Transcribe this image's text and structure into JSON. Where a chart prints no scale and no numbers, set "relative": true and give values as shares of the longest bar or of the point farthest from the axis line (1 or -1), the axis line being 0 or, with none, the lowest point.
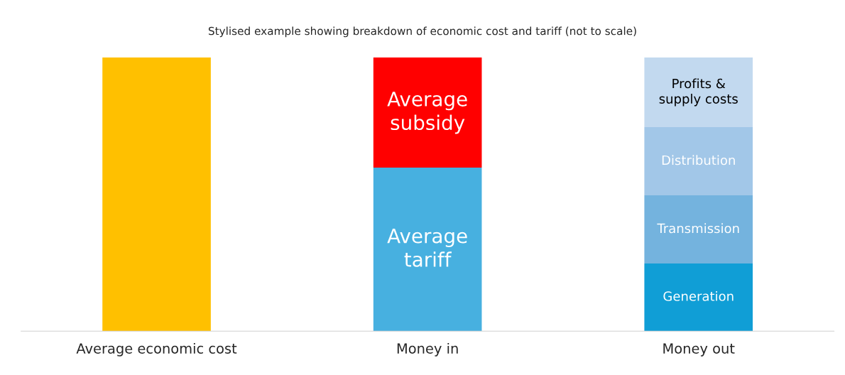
{
  "chart_data": {
    "type": "bar",
    "title": "Stylised example showing breakdown of economic cost and tariff (not to scale)",
    "categories": [
      "Average economic cost",
      "Money in",
      "Money out"
    ],
    "stacked": true,
    "relative": true,
    "grid": false,
    "legend": false,
    "series": [
      {
        "color": "#ffc000",
        "values": [
          1,
          null,
          null
        ]
      },
      {
        "name": "Average\ntariff",
        "color": "#47b0e0",
        "values": [
          null,
          0.597,
          null
        ]
      },
      {
        "name": "Average\nsubsidy",
        "color": "#ff0000",
        "values": [
          null,
          0.403,
          null
        ]
      },
      {
        "name": "Generation",
        "color": "#109ed6",
        "values": [
          null,
          null,
          0.247
        ]
      },
      {
        "name": "Transmission",
        "color": "#74b3de",
        "values": [
          null,
          null,
          0.249
        ]
      },
      {
        "name": "Distribution",
        "color": "#a2c7e8",
        "values": [
          null,
          null,
          0.249
        ]
      },
      {
        "name": "Profits &\nsupply costs",
        "color": "#c2d9ef",
        "values": [
          null,
          null,
          0.255
        ]
      }
    ]
  }
}
